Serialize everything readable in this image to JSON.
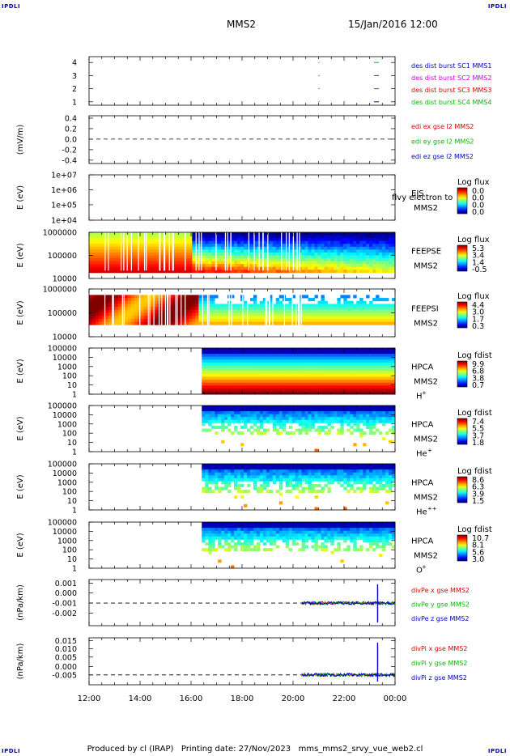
{
  "corner": "IPDLI",
  "header": {
    "spacecraft": "MMS2",
    "datetime": "15/Jan/2016 12:00"
  },
  "footer": {
    "text": "Produced by cl (IRAP)   Printing date: 27/Nov/2023   mms_mms2_srvy_vue_web2.cl"
  },
  "colors": {
    "blue": "#0000cc",
    "magenta": "#cc00cc",
    "red": "#dd0000",
    "green": "#00bb00"
  },
  "chart_data": {
    "type": "heatmap",
    "x_ticks": [
      "12:00",
      "14:00",
      "16:00",
      "18:00",
      "20:00",
      "22:00",
      "00:00"
    ],
    "panels": [
      {
        "id": "burst",
        "y_ticks": [
          "4",
          "3",
          "2",
          "1"
        ],
        "ylabel": "",
        "legend": [
          {
            "text": "des dist burst SC1 MMS1",
            "color": "#0000cc"
          },
          {
            "text": "des dist burst SC2 MMS2",
            "color": "#cc00cc"
          },
          {
            "text": "des dist burst SC3 MMS3",
            "color": "#dd0000"
          },
          {
            "text": "des dist burst SC4 MMS4",
            "color": "#00bb00"
          }
        ]
      },
      {
        "id": "edi",
        "y_ticks": [
          "0.4",
          "0.2",
          "0.0",
          "-0.2",
          "-0.4"
        ],
        "ylabel": "(mV/m)",
        "legend": [
          {
            "text": "edi ex gse l2 MMS2",
            "color": "#dd0000"
          },
          {
            "text": "edi ey gse l2 MMS2",
            "color": "#00bb00"
          },
          {
            "text": "edi ez gse l2 MMS2",
            "color": "#0000cc"
          }
        ]
      },
      {
        "id": "eis",
        "y_ticks": [
          "1e+07",
          "1e+06",
          "1e+05",
          "1e+04"
        ],
        "ylabel": "E (eV)",
        "instrument": [
          "EIS",
          "MMS2"
        ],
        "overlay": "flvy electron to",
        "cbar_title": "Log flux",
        "cbar_ticks": [
          "0.0",
          "0.0",
          "0.0",
          "0.0"
        ]
      },
      {
        "id": "feepse",
        "y_ticks": [
          "1000000",
          "100000",
          "10000"
        ],
        "ylabel": "E (eV)",
        "instrument": [
          "FEEPSE",
          "MMS2"
        ],
        "cbar_title": "Log flux",
        "cbar_ticks": [
          "5.3",
          "3.4",
          "1.4",
          "-0.5"
        ]
      },
      {
        "id": "feepsi",
        "y_ticks": [
          "1000000",
          "100000",
          "10000"
        ],
        "ylabel": "E (eV)",
        "instrument": [
          "FEEPSI",
          "MMS2"
        ],
        "cbar_title": "Log flux",
        "cbar_ticks": [
          "4.4",
          "3.0",
          "1.7",
          "0.3"
        ]
      },
      {
        "id": "hpca-h",
        "y_ticks": [
          "100000",
          "10000",
          "1000",
          "100",
          "10",
          "1"
        ],
        "ylabel": "E (eV)",
        "instrument": [
          "HPCA",
          "MMS2",
          "H",
          "+"
        ],
        "cbar_title": "Log fdist",
        "cbar_ticks": [
          "9.9",
          "6.8",
          "3.8",
          "0.7"
        ]
      },
      {
        "id": "hpca-he",
        "y_ticks": [
          "100000",
          "10000",
          "1000",
          "100",
          "10",
          "1"
        ],
        "ylabel": "E (eV)",
        "instrument": [
          "HPCA",
          "MMS2",
          "He",
          "+"
        ],
        "cbar_title": "Log fdist",
        "cbar_ticks": [
          "7.4",
          "5.5",
          "3.7",
          "1.8"
        ]
      },
      {
        "id": "hpca-hepp",
        "y_ticks": [
          "100000",
          "10000",
          "1000",
          "100",
          "10",
          "1"
        ],
        "ylabel": "E (eV)",
        "instrument": [
          "HPCA",
          "MMS2",
          "He",
          "++"
        ],
        "cbar_title": "Log fdist",
        "cbar_ticks": [
          "8.6",
          "6.3",
          "3.9",
          "1.5"
        ]
      },
      {
        "id": "hpca-o",
        "y_ticks": [
          "100000",
          "10000",
          "1000",
          "100",
          "10",
          "1"
        ],
        "ylabel": "E (eV)",
        "instrument": [
          "HPCA",
          "MMS2",
          "O",
          "+"
        ],
        "cbar_title": "Log fdist",
        "cbar_ticks": [
          "10.7",
          "8.1",
          "5.6",
          "3.0"
        ]
      },
      {
        "id": "divpe",
        "y_ticks": [
          "0.001",
          "0.000",
          "-0.001",
          "-0.002"
        ],
        "ylabel": "(nPa/km)",
        "legend": [
          {
            "text": "divPe x gse MMS2",
            "color": "#dd0000"
          },
          {
            "text": "divPe y gse MMS2",
            "color": "#00bb00"
          },
          {
            "text": "divPe z gse MMS2",
            "color": "#0000cc"
          }
        ]
      },
      {
        "id": "divpi",
        "y_ticks": [
          "0.015",
          "0.010",
          "0.005",
          "0.000",
          "-0.005"
        ],
        "ylabel": "(nPa/km)",
        "legend": [
          {
            "text": "divPi x gse MMS2",
            "color": "#dd0000"
          },
          {
            "text": "divPi y gse MMS2",
            "color": "#00bb00"
          },
          {
            "text": "divPi z gse MMS2",
            "color": "#0000cc"
          }
        ]
      }
    ]
  }
}
